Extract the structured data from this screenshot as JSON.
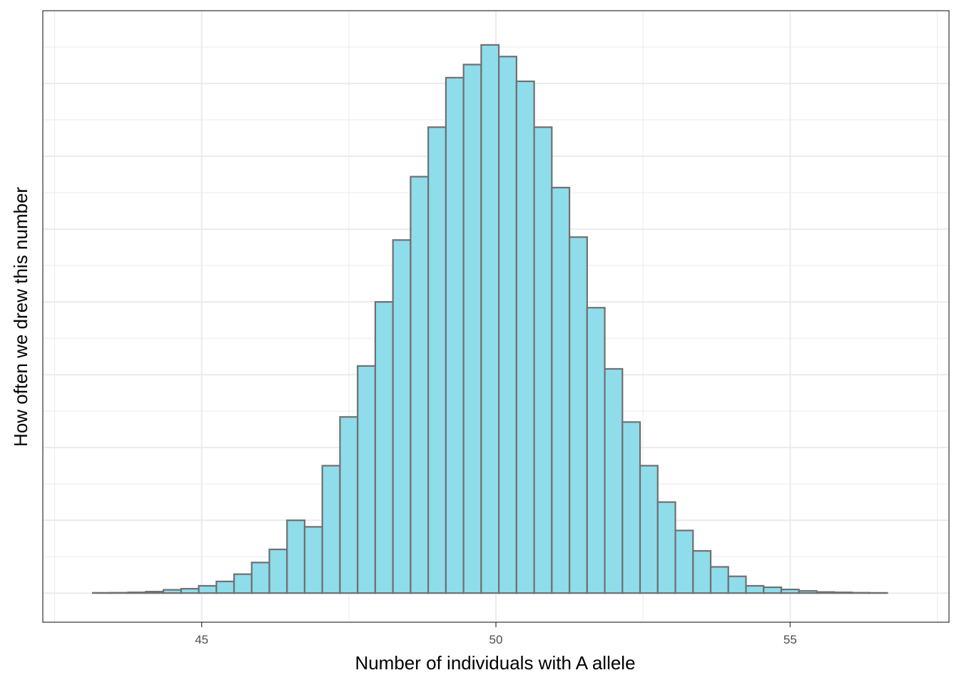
{
  "chart_data": {
    "type": "bar",
    "title": "",
    "xlabel": "Number of individuals with A allele",
    "ylabel": "How often we drew this number",
    "xlim": [
      42.3,
      57.7
    ],
    "ylim": [
      -0.4,
      8.0
    ],
    "x_ticks": [
      45,
      50,
      55
    ],
    "x_tick_labels": [
      "45",
      "50",
      "55"
    ],
    "y_tick_labels_shown": false,
    "grid": true,
    "legend": "none",
    "bin_width": 0.3,
    "bin_start": 42.7,
    "values": [
      0,
      0,
      0.004,
      0.005,
      0.01,
      0.02,
      0.045,
      0.06,
      0.1,
      0.16,
      0.26,
      0.42,
      0.6,
      1.0,
      0.91,
      1.75,
      2.42,
      3.12,
      4.0,
      4.85,
      5.72,
      6.4,
      7.08,
      7.26,
      7.53,
      7.37,
      7.03,
      6.4,
      5.57,
      4.89,
      3.92,
      3.08,
      2.35,
      1.75,
      1.25,
      0.86,
      0.58,
      0.36,
      0.23,
      0.1,
      0.08,
      0.05,
      0.03,
      0.015,
      0.01,
      0.005,
      0.003,
      0,
      0,
      0,
      0
    ],
    "colors": {
      "bar_fill": "#8fdceb",
      "bar_stroke": "#707070",
      "grid": "#ebebeb",
      "panel_border": "#333333"
    }
  }
}
